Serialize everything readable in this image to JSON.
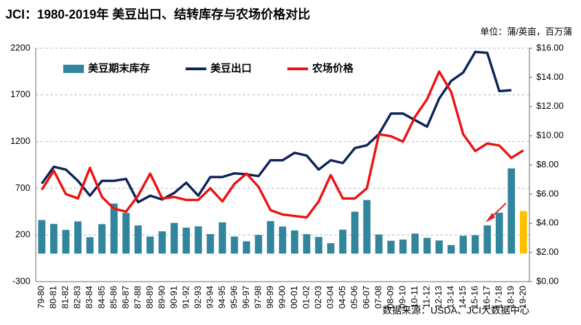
{
  "chart_data": {
    "type": "bar-line",
    "title": "JCI：1980-2019年 美豆出口、结转库存与农场价格对比",
    "unit_note": "单位：蒲/英亩，百万蒲",
    "source": "数据来源：USDA、JCI大数据中心",
    "categories": [
      "79-80",
      "80-81",
      "81-82",
      "82-83",
      "83-84",
      "84-85",
      "85-86",
      "86-87",
      "87-88",
      "88-89",
      "89-90",
      "90-91",
      "91-92",
      "92-93",
      "93-94",
      "94-95",
      "95-96",
      "96-97",
      "97-98",
      "98-99",
      "99-00",
      "00-01",
      "01-02",
      "02-03",
      "03-04",
      "04-05",
      "05-06",
      "06-07",
      "07-08",
      "08-09",
      "09-10",
      "10-11",
      "11-12",
      "12-13",
      "13-14",
      "14-15",
      "15-16",
      "16-17",
      "17-18",
      "18-19",
      "19-20"
    ],
    "ylim": [
      -300,
      2200
    ],
    "yticks": [
      -300,
      200,
      700,
      1200,
      1700,
      2200
    ],
    "y2lim": [
      0,
      16
    ],
    "y2ticks": [
      {
        "value": 0,
        "label": "$0.00"
      },
      {
        "value": 2,
        "label": "$2.00"
      },
      {
        "value": 4,
        "label": "$4.00"
      },
      {
        "value": 6,
        "label": "$6.00"
      },
      {
        "value": 8,
        "label": "$8.00"
      },
      {
        "value": 10,
        "label": "$10.00"
      },
      {
        "value": 12,
        "label": "$12.00"
      },
      {
        "value": 14,
        "label": "$14.00"
      },
      {
        "value": 16,
        "label": "$16.00"
      }
    ],
    "grid": true,
    "series": [
      {
        "name": "美豆期末库存",
        "type": "bar",
        "color": "#31859c",
        "colors": [
          "#31859c",
          "#31859c",
          "#31859c",
          "#31859c",
          "#31859c",
          "#31859c",
          "#31859c",
          "#31859c",
          "#31859c",
          "#31859c",
          "#31859c",
          "#31859c",
          "#31859c",
          "#31859c",
          "#31859c",
          "#31859c",
          "#31859c",
          "#31859c",
          "#31859c",
          "#31859c",
          "#31859c",
          "#31859c",
          "#31859c",
          "#31859c",
          "#31859c",
          "#31859c",
          "#31859c",
          "#31859c",
          "#31859c",
          "#31859c",
          "#31859c",
          "#31859c",
          "#31859c",
          "#31859c",
          "#31859c",
          "#31859c",
          "#31859c",
          "#31859c",
          "#31859c",
          "#31859c",
          "#ffc000"
        ],
        "values": [
          359,
          318,
          254,
          345,
          176,
          316,
          536,
          436,
          302,
          182,
          239,
          329,
          278,
          292,
          209,
          335,
          183,
          132,
          200,
          348,
          290,
          248,
          208,
          178,
          112,
          256,
          449,
          574,
          205,
          138,
          151,
          215,
          169,
          141,
          92,
          191,
          197,
          302,
          438,
          913,
          455
        ]
      },
      {
        "name": "美豆出口",
        "type": "line",
        "color": "#0d2359",
        "values": [
          750,
          930,
          900,
          780,
          620,
          780,
          780,
          800,
          550,
          620,
          580,
          650,
          760,
          620,
          820,
          820,
          860,
          850,
          830,
          1000,
          1000,
          1080,
          1050,
          900,
          1000,
          970,
          1130,
          1160,
          1280,
          1500,
          1500,
          1430,
          1360,
          1660,
          1850,
          1940,
          2160,
          2150,
          1740,
          1750,
          null
        ]
      },
      {
        "name": "农场价格",
        "type": "line",
        "color": "#ee1111",
        "axis": "y2",
        "values": [
          6.3,
          7.6,
          6.0,
          5.7,
          7.8,
          5.8,
          5.0,
          4.8,
          5.9,
          7.4,
          5.7,
          5.8,
          5.6,
          5.6,
          6.4,
          5.5,
          6.7,
          7.4,
          6.5,
          4.9,
          4.6,
          4.5,
          4.4,
          5.5,
          7.3,
          5.7,
          5.7,
          6.4,
          10.1,
          9.97,
          9.6,
          11.3,
          12.5,
          14.4,
          13.0,
          10.1,
          8.95,
          9.47,
          9.33,
          8.48,
          9.0
        ]
      }
    ]
  }
}
